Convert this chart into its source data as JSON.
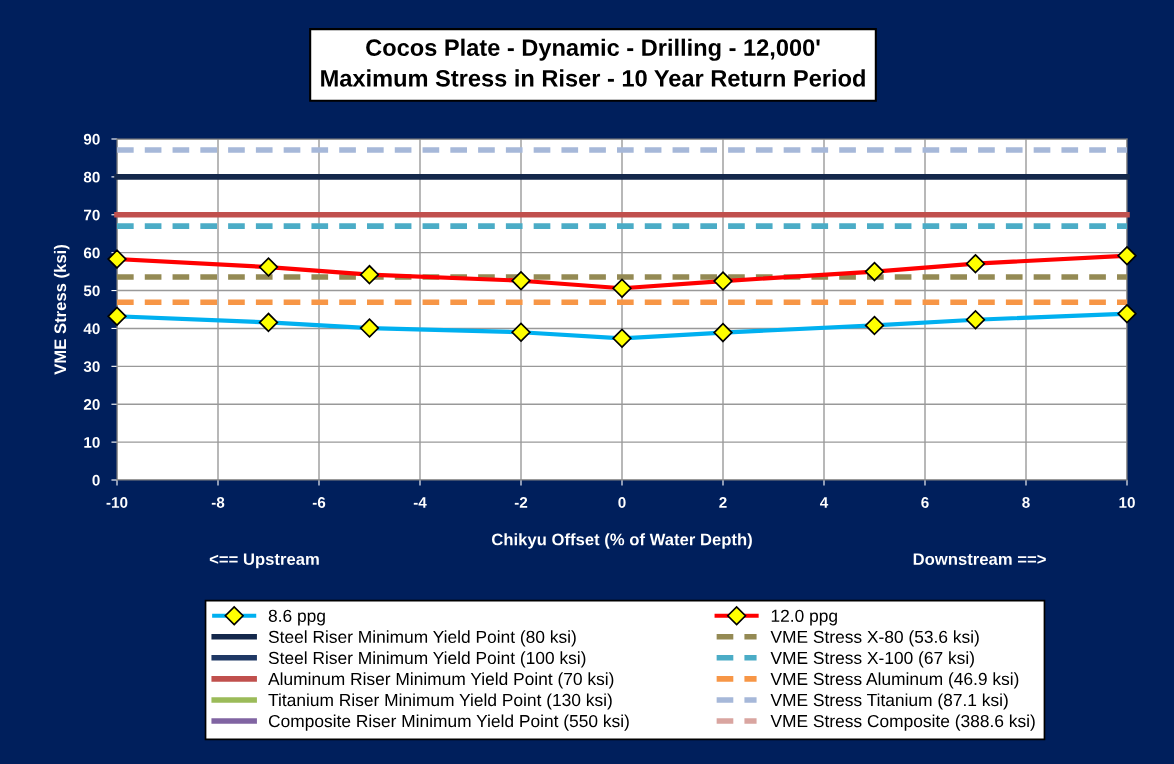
{
  "chart_data": {
    "type": "line",
    "title": "Cocos Plate - Dynamic - Drilling - 12,000'\nMaximum Stress in Riser - 10 Year Return Period",
    "xlabel": "Chikyu Offset (% of Water Depth)",
    "ylabel": "VME Stress (ksi)",
    "annotations": [
      "<== Upstream",
      "Downstream ==>"
    ],
    "x": [
      -10,
      -7,
      -5,
      -2,
      0,
      2,
      5,
      7,
      10
    ],
    "xlim": [
      -10,
      10
    ],
    "xticks": [
      -10,
      -8,
      -6,
      -4,
      -2,
      0,
      2,
      4,
      6,
      8,
      10
    ],
    "ylim": [
      0,
      90
    ],
    "yticks": [
      0,
      10,
      20,
      30,
      40,
      50,
      60,
      70,
      80,
      90
    ],
    "grid": true,
    "legend": "bottom",
    "series": [
      {
        "name": "8.6 ppg",
        "color": "#00b0f0",
        "marker": "diamond",
        "line_style": "solid",
        "values": [
          43.2,
          41.6,
          40.1,
          39.0,
          37.4,
          38.9,
          40.8,
          42.3,
          43.9
        ]
      },
      {
        "name": "12.0 ppg",
        "color": "#ff0000",
        "marker": "diamond",
        "line_style": "solid",
        "values": [
          58.3,
          56.2,
          54.2,
          52.6,
          50.6,
          52.5,
          55.0,
          57.1,
          59.2
        ]
      },
      {
        "name": "Steel Riser Minimum Yield Point (80 ksi)",
        "color": "#14284b",
        "line_style": "solid",
        "values": [
          80,
          80,
          80,
          80,
          80,
          80,
          80,
          80,
          80
        ]
      },
      {
        "name": "VME Stress X-80 (53.6 ksi)",
        "color": "#948a54",
        "line_style": "dashed",
        "values": [
          53.6,
          53.6,
          53.6,
          53.6,
          53.6,
          53.6,
          53.6,
          53.6,
          53.6
        ]
      },
      {
        "name": "Steel Riser Minimum Yield Point (100 ksi)",
        "color": "#1f3864",
        "line_style": "solid",
        "values": [
          null,
          null,
          null,
          null,
          null,
          null,
          null,
          null,
          null
        ]
      },
      {
        "name": "VME Stress X-100 (67 ksi)",
        "color": "#4bacc6",
        "line_style": "dashed",
        "values": [
          67,
          67,
          67,
          67,
          67,
          67,
          67,
          67,
          67
        ]
      },
      {
        "name": "Aluminum Riser Minimum Yield Point (70 ksi)",
        "color": "#c0504d",
        "line_style": "solid",
        "values": [
          70,
          70,
          70,
          70,
          70,
          70,
          70,
          70,
          70
        ]
      },
      {
        "name": "VME Stress Aluminum (46.9 ksi)",
        "color": "#f79646",
        "line_style": "dashed",
        "values": [
          46.9,
          46.9,
          46.9,
          46.9,
          46.9,
          46.9,
          46.9,
          46.9,
          46.9
        ]
      },
      {
        "name": "Titanium Riser Minimum Yield Point (130 ksi)",
        "color": "#9bbb59",
        "line_style": "solid",
        "values": [
          null,
          null,
          null,
          null,
          null,
          null,
          null,
          null,
          null
        ]
      },
      {
        "name": "VME Stress Titanium (87.1 ksi)",
        "color": "#a6b8d9",
        "line_style": "dashed",
        "values": [
          87.1,
          87.1,
          87.1,
          87.1,
          87.1,
          87.1,
          87.1,
          87.1,
          87.1
        ]
      },
      {
        "name": "Composite Riser Minimum Yield Point (550 ksi)",
        "color": "#8064a2",
        "line_style": "solid",
        "values": [
          null,
          null,
          null,
          null,
          null,
          null,
          null,
          null,
          null
        ]
      },
      {
        "name": "VME Stress Composite (388.6 ksi)",
        "color": "#d9a5a0",
        "line_style": "dashed",
        "values": [
          null,
          null,
          null,
          null,
          null,
          null,
          null,
          null,
          null
        ]
      }
    ]
  }
}
